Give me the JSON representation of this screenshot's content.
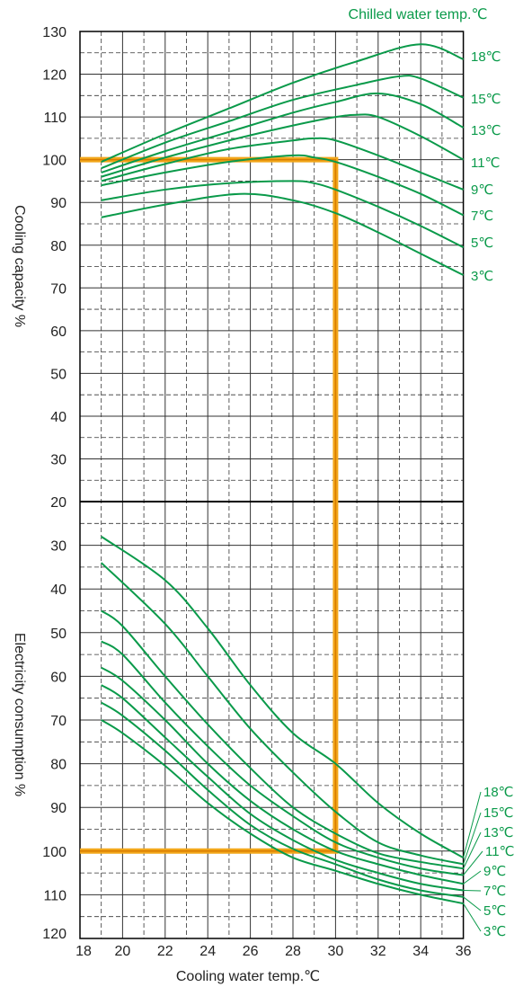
{
  "chart_data": [
    {
      "type": "line",
      "panel": "top",
      "ylabel": "Cooling capacity %",
      "xlabel": "Cooling water temp.℃",
      "legend_title": "Chilled water temp.℃",
      "ylim": [
        20,
        130
      ],
      "xlim": [
        18,
        36
      ],
      "yticks": [
        20,
        30,
        40,
        50,
        60,
        70,
        80,
        90,
        100,
        110,
        120,
        130
      ],
      "xticks": [
        18,
        20,
        22,
        24,
        26,
        28,
        30,
        32,
        34,
        36
      ],
      "series": [
        {
          "name": "18℃",
          "points": [
            [
              19,
              99.5
            ],
            [
              22,
              106
            ],
            [
              25,
              112
            ],
            [
              28,
              118
            ],
            [
              31,
              123
            ],
            [
              34,
              127
            ],
            [
              36,
              123.5
            ]
          ]
        },
        {
          "name": "15℃",
          "points": [
            [
              19,
              98
            ],
            [
              22,
              104
            ],
            [
              25,
              109
            ],
            [
              28,
              114
            ],
            [
              31,
              117.5
            ],
            [
              33,
              119.5
            ],
            [
              34,
              119
            ],
            [
              36,
              114.5
            ]
          ]
        },
        {
          "name": "13℃",
          "points": [
            [
              19,
              97
            ],
            [
              22,
              102
            ],
            [
              25,
              106.5
            ],
            [
              28,
              111
            ],
            [
              30,
              113.5
            ],
            [
              32,
              115.5
            ],
            [
              34,
              113
            ],
            [
              36,
              107.5
            ]
          ]
        },
        {
          "name": "11℃",
          "points": [
            [
              19,
              96
            ],
            [
              22,
              100.5
            ],
            [
              25,
              104.5
            ],
            [
              28,
              108
            ],
            [
              30,
              110
            ],
            [
              31,
              110.5
            ],
            [
              32,
              110
            ],
            [
              34,
              105.5
            ],
            [
              36,
              100
            ]
          ]
        },
        {
          "name": "9℃",
          "points": [
            [
              19,
              95
            ],
            [
              22,
              99
            ],
            [
              25,
              102.5
            ],
            [
              28,
              104.5
            ],
            [
              29,
              105
            ],
            [
              30,
              104.5
            ],
            [
              32,
              101
            ],
            [
              34,
              97
            ],
            [
              36,
              93
            ]
          ]
        },
        {
          "name": "7℃",
          "points": [
            [
              19,
              94
            ],
            [
              22,
              97
            ],
            [
              25,
              99.5
            ],
            [
              28,
              101
            ],
            [
              29,
              100.5
            ],
            [
              30,
              99.5
            ],
            [
              32,
              96
            ],
            [
              34,
              92
            ],
            [
              36,
              87
            ]
          ]
        },
        {
          "name": "5℃",
          "points": [
            [
              19,
              90.5
            ],
            [
              22,
              93
            ],
            [
              25,
              94.5
            ],
            [
              28,
              95
            ],
            [
              29,
              94.5
            ],
            [
              30,
              93
            ],
            [
              32,
              89
            ],
            [
              34,
              84.5
            ],
            [
              36,
              79.5
            ]
          ]
        },
        {
          "name": "3℃",
          "points": [
            [
              19,
              86.5
            ],
            [
              22,
              89.5
            ],
            [
              25.5,
              92
            ],
            [
              28,
              90.5
            ],
            [
              30,
              87.5
            ],
            [
              32,
              83
            ],
            [
              34,
              78
            ],
            [
              36,
              73
            ]
          ]
        }
      ],
      "annotation": {
        "x": 30,
        "y": 100
      }
    },
    {
      "type": "line",
      "panel": "bottom",
      "ylabel": "Electricity consumption %",
      "xlabel": "Cooling water temp.℃",
      "ylim": [
        120,
        20
      ],
      "xlim": [
        18,
        36
      ],
      "yticks": [
        20,
        30,
        40,
        50,
        60,
        70,
        80,
        90,
        100,
        110,
        120
      ],
      "xticks": [
        18,
        20,
        22,
        24,
        26,
        28,
        30,
        32,
        34,
        36
      ],
      "series": [
        {
          "name": "18℃",
          "points": [
            [
              19,
              28
            ],
            [
              22,
              38
            ],
            [
              24,
              49
            ],
            [
              26,
              62
            ],
            [
              28,
              73
            ],
            [
              30,
              80
            ],
            [
              32,
              89
            ],
            [
              34,
              96
            ],
            [
              36,
              101.5
            ]
          ]
        },
        {
          "name": "15℃",
          "points": [
            [
              19,
              34
            ],
            [
              22,
              48
            ],
            [
              24,
              60
            ],
            [
              26,
              72
            ],
            [
              28,
              82
            ],
            [
              30,
              91
            ],
            [
              32,
              98
            ],
            [
              34,
              101
            ],
            [
              36,
              103
            ]
          ]
        },
        {
          "name": "13℃",
          "points": [
            [
              19,
              45
            ],
            [
              20,
              48.5
            ],
            [
              22,
              60
            ],
            [
              24,
              71
            ],
            [
              26,
              81
            ],
            [
              28,
              90
            ],
            [
              30,
              96
            ],
            [
              32,
              100.5
            ],
            [
              34,
              102.5
            ],
            [
              36,
              104
            ]
          ]
        },
        {
          "name": "11℃",
          "points": [
            [
              19,
              52
            ],
            [
              20,
              55
            ],
            [
              22,
              66
            ],
            [
              24,
              76
            ],
            [
              26,
              85
            ],
            [
              28,
              92
            ],
            [
              30,
              98
            ],
            [
              32,
              101.5
            ],
            [
              34,
              104
            ],
            [
              36,
              105.5
            ]
          ]
        },
        {
          "name": "9℃",
          "points": [
            [
              19,
              58
            ],
            [
              20,
              61
            ],
            [
              22,
              70
            ],
            [
              24,
              80
            ],
            [
              26,
              88.5
            ],
            [
              28,
              95
            ],
            [
              30,
              100
            ],
            [
              32,
              103
            ],
            [
              34,
              105.5
            ],
            [
              36,
              107.5
            ]
          ]
        },
        {
          "name": "7℃",
          "points": [
            [
              19,
              62
            ],
            [
              20,
              65
            ],
            [
              22,
              74
            ],
            [
              24,
              83
            ],
            [
              26,
              91.5
            ],
            [
              28,
              97.5
            ],
            [
              30,
              102
            ],
            [
              32,
              105
            ],
            [
              34,
              107.5
            ],
            [
              36,
              109
            ]
          ]
        },
        {
          "name": "5℃",
          "points": [
            [
              19,
              66
            ],
            [
              20,
              69
            ],
            [
              22,
              77
            ],
            [
              24,
              86
            ],
            [
              26,
              94
            ],
            [
              28,
              99.5
            ],
            [
              30,
              103
            ],
            [
              32,
              106.5
            ],
            [
              34,
              109
            ],
            [
              36,
              110.5
            ]
          ]
        },
        {
          "name": "3℃",
          "points": [
            [
              19,
              70
            ],
            [
              20,
              73
            ],
            [
              22,
              80.5
            ],
            [
              24,
              89
            ],
            [
              26,
              96
            ],
            [
              28,
              101.5
            ],
            [
              30,
              104.5
            ],
            [
              32,
              107.5
            ],
            [
              34,
              110
            ],
            [
              36,
              112
            ]
          ]
        }
      ],
      "annotation": {
        "x": 30,
        "y": 100
      }
    }
  ],
  "colors": {
    "series": "#0a9a4a",
    "highlight": "#f2a71b",
    "highlight_core": "#d97c00",
    "grid": "#333333"
  }
}
